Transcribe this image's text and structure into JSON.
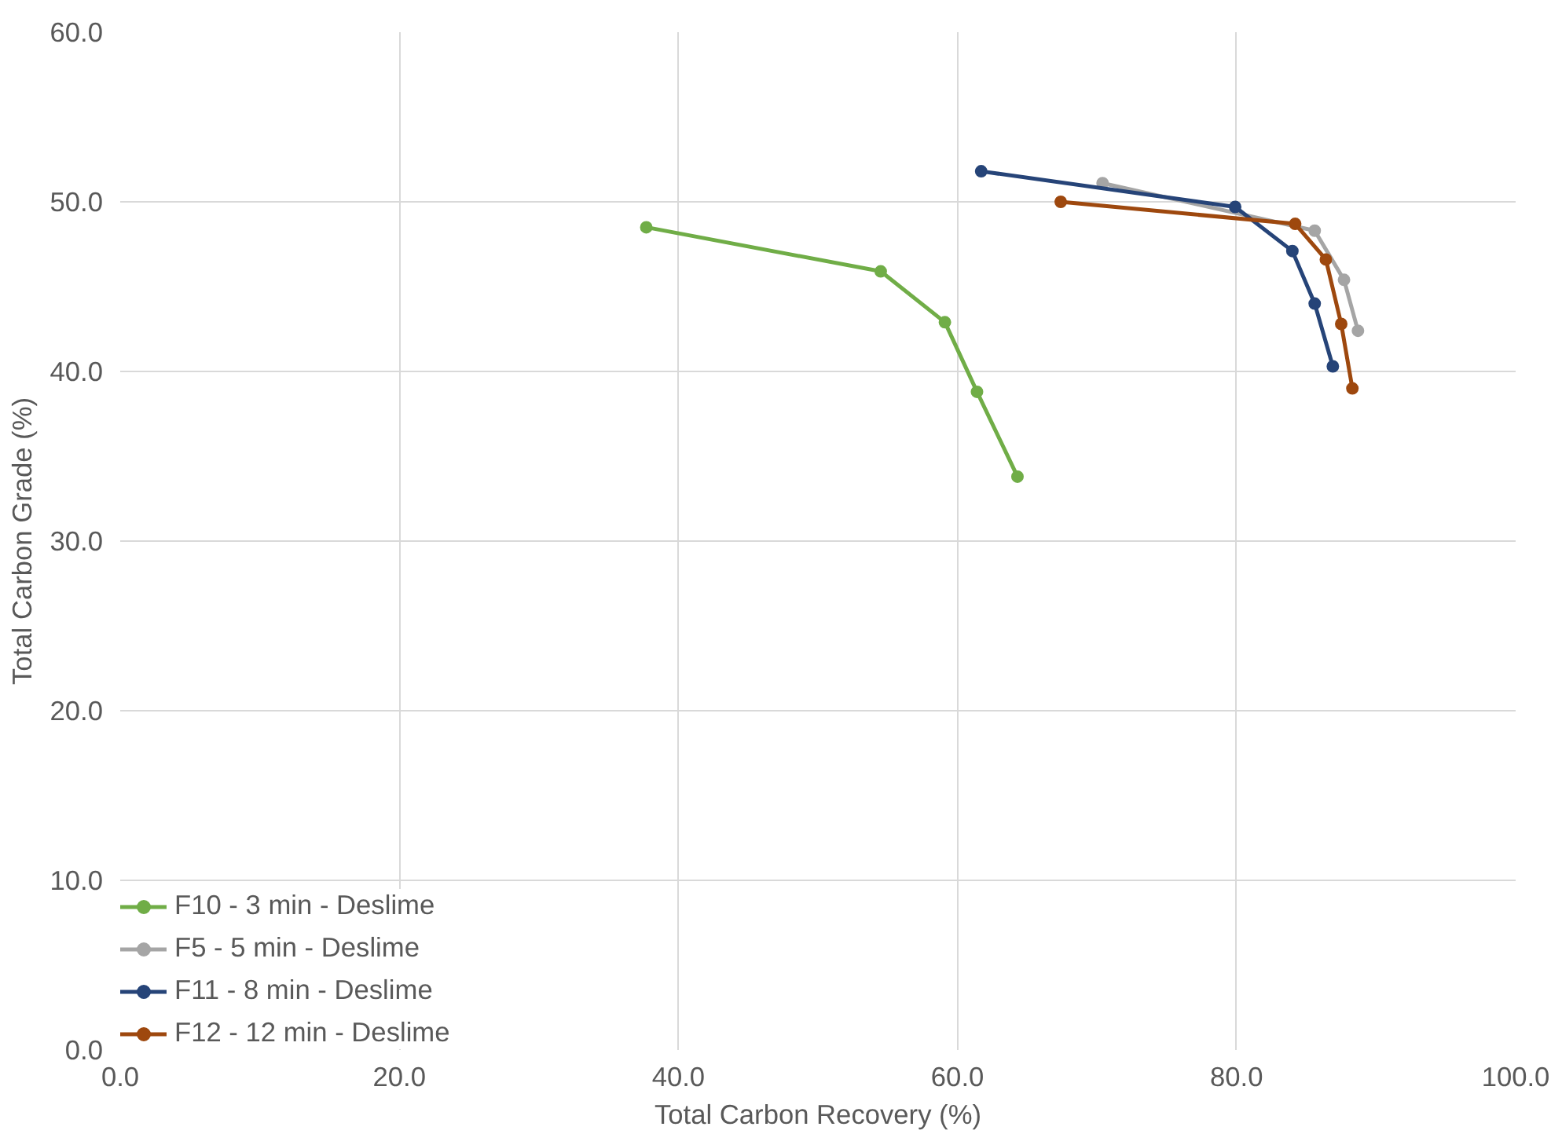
{
  "chart_data": {
    "type": "line",
    "xlabel": "Total Carbon Recovery (%)",
    "ylabel": "Total Carbon Grade (%)",
    "xlim": [
      0,
      100
    ],
    "ylim": [
      0,
      60
    ],
    "xticks": [
      {
        "value": 0,
        "label": "0.0"
      },
      {
        "value": 20,
        "label": "20.0"
      },
      {
        "value": 40,
        "label": "40.0"
      },
      {
        "value": 60,
        "label": "60.0"
      },
      {
        "value": 80,
        "label": "80.0"
      },
      {
        "value": 100,
        "label": "100.0"
      }
    ],
    "yticks": [
      {
        "value": 0,
        "label": "0.0"
      },
      {
        "value": 10,
        "label": "10.0"
      },
      {
        "value": 20,
        "label": "20.0"
      },
      {
        "value": 30,
        "label": "30.0"
      },
      {
        "value": 40,
        "label": "40.0"
      },
      {
        "value": 50,
        "label": "50.0"
      },
      {
        "value": 60,
        "label": "60.0"
      }
    ],
    "grid": true,
    "legend": "bottom left",
    "marker": "circle",
    "line_style": "solid",
    "series": [
      {
        "name": "F10 - 3 min - Deslime",
        "color": "#70ad47",
        "x": [
          37.7,
          54.5,
          59.1,
          61.4,
          64.3
        ],
        "values": [
          48.5,
          45.9,
          42.9,
          38.8,
          33.8
        ]
      },
      {
        "name": "F5 - 5 min - Deslime",
        "color": "#a5a5a5",
        "x": [
          70.4,
          85.6,
          87.7,
          88.7
        ],
        "values": [
          51.1,
          48.3,
          45.4,
          42.4
        ]
      },
      {
        "name": "F11 - 8 min - Deslime",
        "color": "#264478",
        "x": [
          61.7,
          79.9,
          84.0,
          85.6,
          86.9
        ],
        "values": [
          51.8,
          49.7,
          47.1,
          44.0,
          40.3
        ]
      },
      {
        "name": "F12 - 12 min - Deslime",
        "color": "#9e480e",
        "x": [
          67.4,
          84.2,
          86.4,
          87.5,
          88.3
        ],
        "values": [
          50.0,
          48.7,
          46.6,
          42.8,
          39.0
        ]
      }
    ]
  }
}
